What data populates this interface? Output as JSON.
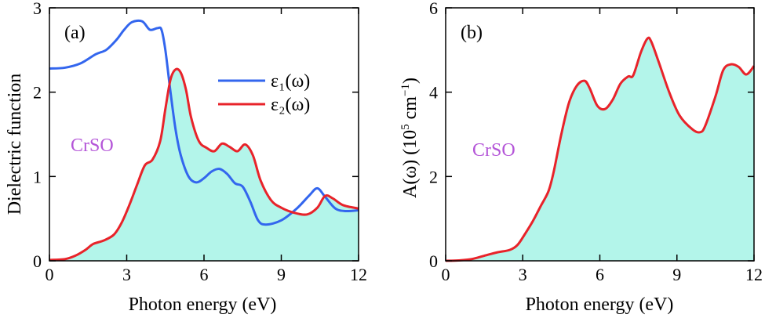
{
  "figure": {
    "accent_fill": "#b3f5ea",
    "curve_blue": "#3366ee",
    "curve_red": "#e8232a",
    "material_color": "#b455d8"
  },
  "chart_data": [
    {
      "type": "line",
      "panel": "(a)",
      "annotation": "CrSO",
      "xlabel": "Photon energy (eV)",
      "ylabel": "Dielectric function",
      "xlim": [
        0,
        12
      ],
      "ylim": [
        0,
        3
      ],
      "xticks": [
        0,
        3,
        6,
        9,
        12
      ],
      "yticks": [
        0,
        1,
        2,
        3
      ],
      "grid": false,
      "legend": "top-right",
      "series": [
        {
          "name": "ε₁(ω)",
          "color": "#3366ee",
          "fill": false,
          "points": [
            [
              0,
              2.28
            ],
            [
              0.6,
              2.29
            ],
            [
              1.2,
              2.34
            ],
            [
              1.8,
              2.45
            ],
            [
              2.2,
              2.5
            ],
            [
              2.6,
              2.62
            ],
            [
              2.9,
              2.74
            ],
            [
              3.2,
              2.83
            ],
            [
              3.6,
              2.84
            ],
            [
              3.9,
              2.74
            ],
            [
              4.2,
              2.76
            ],
            [
              4.35,
              2.74
            ],
            [
              4.5,
              2.5
            ],
            [
              4.7,
              2.0
            ],
            [
              4.9,
              1.55
            ],
            [
              5.1,
              1.25
            ],
            [
              5.4,
              1.0
            ],
            [
              5.7,
              0.93
            ],
            [
              6.0,
              0.98
            ],
            [
              6.3,
              1.06
            ],
            [
              6.6,
              1.09
            ],
            [
              6.9,
              1.03
            ],
            [
              7.2,
              0.92
            ],
            [
              7.5,
              0.88
            ],
            [
              7.8,
              0.7
            ],
            [
              8.1,
              0.48
            ],
            [
              8.4,
              0.43
            ],
            [
              9.0,
              0.48
            ],
            [
              9.6,
              0.62
            ],
            [
              10.1,
              0.78
            ],
            [
              10.4,
              0.86
            ],
            [
              10.7,
              0.76
            ],
            [
              11.1,
              0.62
            ],
            [
              11.5,
              0.59
            ],
            [
              12,
              0.6
            ]
          ]
        },
        {
          "name": "ε₂(ω)",
          "color": "#e8232a",
          "fill": true,
          "points": [
            [
              0,
              0.01
            ],
            [
              0.6,
              0.02
            ],
            [
              1.0,
              0.06
            ],
            [
              1.4,
              0.13
            ],
            [
              1.7,
              0.2
            ],
            [
              2.1,
              0.24
            ],
            [
              2.5,
              0.31
            ],
            [
              2.8,
              0.45
            ],
            [
              3.1,
              0.66
            ],
            [
              3.4,
              0.9
            ],
            [
              3.7,
              1.13
            ],
            [
              4.0,
              1.2
            ],
            [
              4.3,
              1.42
            ],
            [
              4.5,
              1.8
            ],
            [
              4.7,
              2.15
            ],
            [
              4.9,
              2.27
            ],
            [
              5.1,
              2.23
            ],
            [
              5.3,
              2.03
            ],
            [
              5.5,
              1.7
            ],
            [
              5.8,
              1.42
            ],
            [
              6.1,
              1.34
            ],
            [
              6.4,
              1.3
            ],
            [
              6.7,
              1.39
            ],
            [
              7.0,
              1.35
            ],
            [
              7.3,
              1.3
            ],
            [
              7.6,
              1.38
            ],
            [
              7.9,
              1.25
            ],
            [
              8.2,
              0.95
            ],
            [
              8.6,
              0.72
            ],
            [
              9.0,
              0.63
            ],
            [
              9.5,
              0.57
            ],
            [
              10.0,
              0.55
            ],
            [
              10.4,
              0.63
            ],
            [
              10.7,
              0.77
            ],
            [
              11.0,
              0.74
            ],
            [
              11.4,
              0.66
            ],
            [
              12,
              0.62
            ]
          ]
        }
      ]
    },
    {
      "type": "area",
      "panel": "(b)",
      "annotation": "CrSO",
      "xlabel": "Photon energy (eV)",
      "ylabel_main": "A(ω) (10",
      "ylabel_sup1": "5",
      "ylabel_unit": " cm",
      "ylabel_sup2": "−1",
      "ylabel_end": ")",
      "xlim": [
        0,
        12
      ],
      "ylim": [
        0,
        6
      ],
      "xticks": [
        0,
        3,
        6,
        9,
        12
      ],
      "yticks": [
        0,
        2,
        4,
        6
      ],
      "grid": false,
      "series": [
        {
          "color": "#e8232a",
          "fill": true,
          "points": [
            [
              0,
              0.0
            ],
            [
              0.5,
              0.01
            ],
            [
              1.0,
              0.04
            ],
            [
              1.5,
              0.12
            ],
            [
              2.0,
              0.2
            ],
            [
              2.5,
              0.26
            ],
            [
              2.8,
              0.38
            ],
            [
              3.1,
              0.65
            ],
            [
              3.4,
              0.95
            ],
            [
              3.7,
              1.3
            ],
            [
              4.0,
              1.65
            ],
            [
              4.2,
              2.1
            ],
            [
              4.5,
              3.0
            ],
            [
              4.8,
              3.75
            ],
            [
              5.1,
              4.15
            ],
            [
              5.4,
              4.27
            ],
            [
              5.6,
              4.1
            ],
            [
              5.9,
              3.68
            ],
            [
              6.2,
              3.6
            ],
            [
              6.5,
              3.82
            ],
            [
              6.8,
              4.2
            ],
            [
              7.1,
              4.37
            ],
            [
              7.3,
              4.4
            ],
            [
              7.6,
              4.95
            ],
            [
              7.85,
              5.27
            ],
            [
              8.0,
              5.2
            ],
            [
              8.3,
              4.7
            ],
            [
              8.7,
              4.0
            ],
            [
              9.1,
              3.45
            ],
            [
              9.6,
              3.12
            ],
            [
              9.9,
              3.05
            ],
            [
              10.1,
              3.2
            ],
            [
              10.5,
              3.9
            ],
            [
              10.8,
              4.52
            ],
            [
              11.1,
              4.66
            ],
            [
              11.4,
              4.6
            ],
            [
              11.7,
              4.42
            ],
            [
              12,
              4.62
            ]
          ]
        }
      ]
    }
  ]
}
